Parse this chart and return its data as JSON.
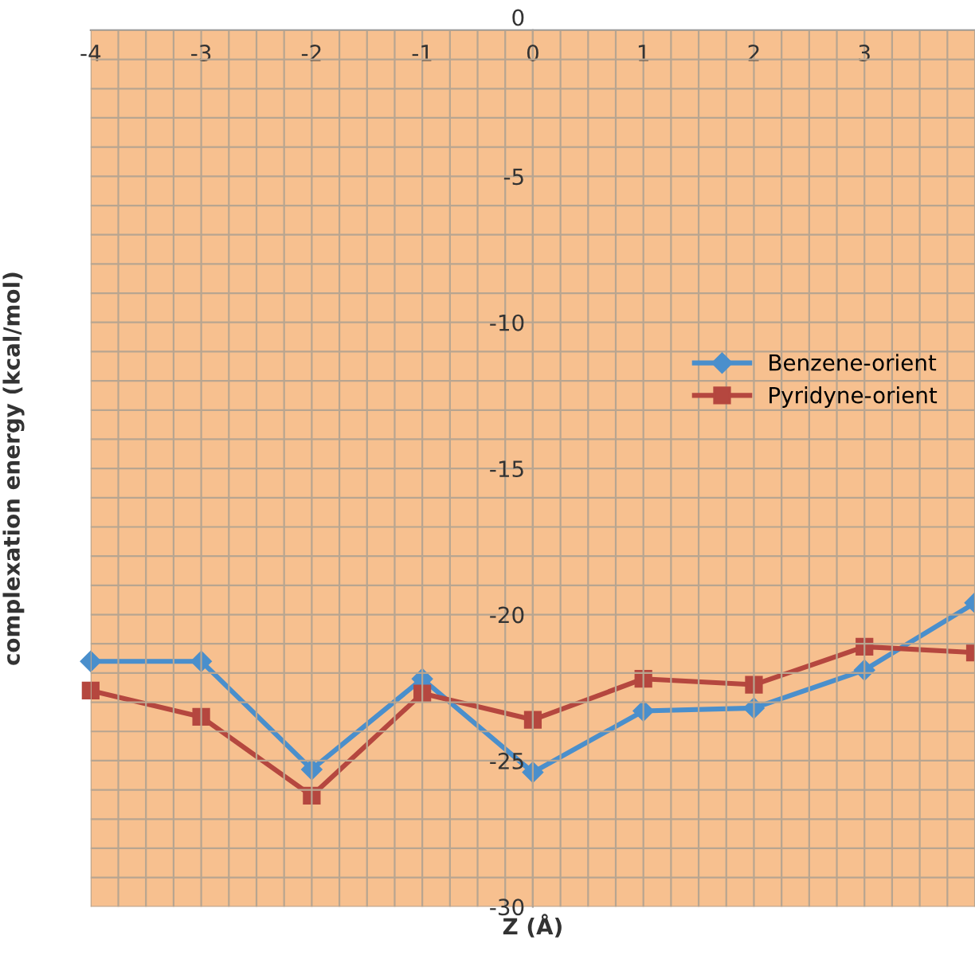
{
  "chart_data": {
    "type": "line",
    "xlabel": "Z (Å)",
    "ylabel": "complexation energy (kcal/mol)",
    "x": [
      -4,
      -3,
      -2,
      -1,
      0,
      1,
      2,
      3,
      4
    ],
    "series": [
      {
        "name": "Benzene-orient",
        "color": "#4a8fcc",
        "marker": "diamond",
        "values": [
          -21.6,
          -21.6,
          -25.3,
          -22.2,
          -25.4,
          -23.3,
          -23.2,
          -21.9,
          -19.6
        ]
      },
      {
        "name": "Pyridyne-orient",
        "color": "#b5473f",
        "marker": "square",
        "values": [
          -22.6,
          -23.5,
          -26.2,
          -22.7,
          -23.6,
          -22.2,
          -22.4,
          -21.1,
          -21.3
        ]
      }
    ],
    "xlim": [
      -4,
      4
    ],
    "xticks": [
      -4,
      -3,
      -2,
      -1,
      0,
      1,
      2,
      3
    ],
    "ylim": [
      -30,
      0
    ],
    "yticks": [
      -30,
      -25,
      -20,
      -15,
      -10,
      -5,
      0
    ],
    "grid": true,
    "legend": "right",
    "line_style": "solid"
  }
}
